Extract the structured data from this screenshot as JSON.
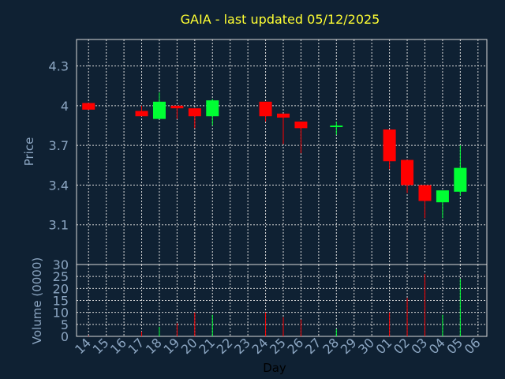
{
  "chart_data": [
    {
      "type": "candlestick",
      "title": "GAIA - last updated 05/12/2025",
      "ylabel": "Price",
      "ylim": [
        2.8,
        4.5
      ],
      "yticks": [
        "3.1",
        "3.4",
        "3.7",
        "4",
        "4.3"
      ],
      "grid": true,
      "colors": {
        "up": "#00ff33",
        "down": "#ff0000"
      },
      "candles": [
        {
          "day": "14",
          "open": 4.02,
          "high": 4.02,
          "low": 3.97,
          "close": 3.97
        },
        {
          "day": "17",
          "open": 3.96,
          "high": 4.0,
          "low": 3.92,
          "close": 3.92
        },
        {
          "day": "18",
          "open": 3.9,
          "high": 4.1,
          "low": 3.9,
          "close": 4.03
        },
        {
          "day": "19",
          "open": 4.0,
          "high": 4.0,
          "low": 3.9,
          "close": 3.98
        },
        {
          "day": "20",
          "open": 3.98,
          "high": 3.98,
          "low": 3.83,
          "close": 3.92
        },
        {
          "day": "21",
          "open": 3.92,
          "high": 4.05,
          "low": 3.85,
          "close": 4.04
        },
        {
          "day": "24",
          "open": 4.03,
          "high": 4.03,
          "low": 3.88,
          "close": 3.92
        },
        {
          "day": "25",
          "open": 3.94,
          "high": 3.94,
          "low": 3.71,
          "close": 3.91
        },
        {
          "day": "26",
          "open": 3.88,
          "high": 3.88,
          "low": 3.64,
          "close": 3.83
        },
        {
          "day": "28",
          "open": 3.85,
          "high": 3.88,
          "low": 3.78,
          "close": 3.85
        },
        {
          "day": "01",
          "open": 3.82,
          "high": 3.82,
          "low": 3.52,
          "close": 3.58
        },
        {
          "day": "02",
          "open": 3.59,
          "high": 3.59,
          "low": 3.34,
          "close": 3.4
        },
        {
          "day": "03",
          "open": 3.4,
          "high": 3.4,
          "low": 3.15,
          "close": 3.28
        },
        {
          "day": "04",
          "open": 3.27,
          "high": 3.36,
          "low": 3.15,
          "close": 3.36
        },
        {
          "day": "05",
          "open": 3.35,
          "high": 3.7,
          "low": 3.32,
          "close": 3.53
        }
      ]
    },
    {
      "type": "bar",
      "ylabel": "Volume (0000)",
      "xlabel": "Day",
      "ylim": [
        0,
        30
      ],
      "yticks": [
        "0",
        "5",
        "10",
        "15",
        "20",
        "25",
        "30"
      ],
      "grid": true,
      "categories": [
        "14",
        "15",
        "16",
        "17",
        "18",
        "19",
        "20",
        "21",
        "22",
        "23",
        "24",
        "25",
        "26",
        "27",
        "28",
        "29",
        "30",
        "01",
        "02",
        "03",
        "04",
        "05",
        "06"
      ],
      "values": [
        0.3,
        0,
        0,
        2,
        4,
        5.5,
        10,
        9,
        0,
        0,
        10,
        8,
        7,
        0,
        3,
        0,
        0,
        10,
        16,
        26,
        9,
        24,
        0
      ],
      "bar_colors": [
        "#ff0000",
        "#000000",
        "#000000",
        "#ff0000",
        "#00ff33",
        "#ff0000",
        "#ff0000",
        "#00ff33",
        "#000000",
        "#000000",
        "#ff0000",
        "#ff0000",
        "#ff0000",
        "#000000",
        "#00ff33",
        "#000000",
        "#000000",
        "#ff0000",
        "#ff0000",
        "#ff0000",
        "#00ff33",
        "#00ff33",
        "#000000"
      ]
    }
  ]
}
